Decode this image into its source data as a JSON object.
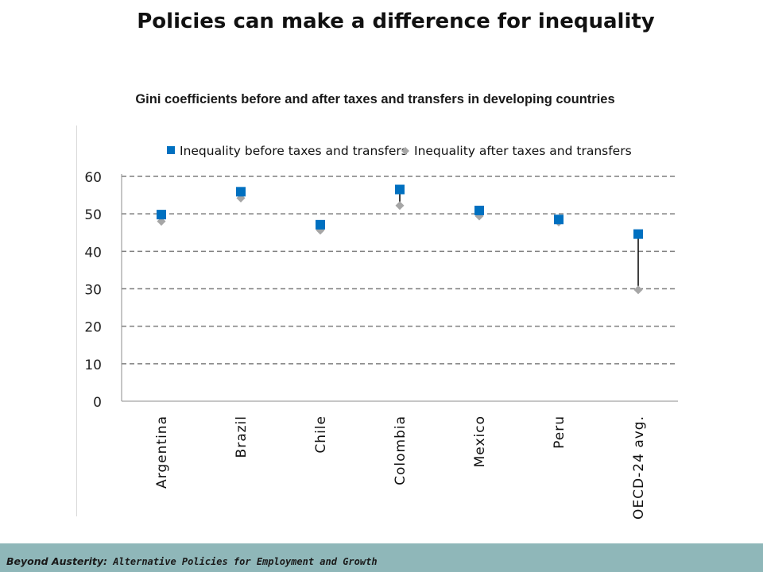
{
  "slide": {
    "title": "Policies can make a difference for inequality"
  },
  "footer": {
    "main": "Beyond Austerity:",
    "sub": " Alternative Policies for Employment and Growth"
  },
  "chart_data": {
    "type": "scatter",
    "title": "Gini coefficients before and after taxes and transfers in developing countries",
    "categories": [
      "Argentina",
      "Brazil",
      "Chile",
      "Colombia",
      "Mexico",
      "Peru",
      "OECD-24 avg."
    ],
    "series": [
      {
        "name": "Inequality before taxes and transfers",
        "marker": "square",
        "color": "#0070c0",
        "values": [
          49.8,
          55.9,
          47.1,
          56.5,
          50.9,
          48.5,
          44.6
        ]
      },
      {
        "name": "Inequality after taxes and transfers",
        "marker": "diamond",
        "color": "#a6a6a6",
        "values": [
          48.0,
          54.2,
          45.6,
          52.2,
          49.4,
          47.8,
          29.7
        ]
      }
    ],
    "ylim": [
      0,
      60
    ],
    "yticks": [
      0,
      10,
      20,
      30,
      40,
      50,
      60
    ],
    "grid": true,
    "legend_position": "top",
    "connector_color": "#000000"
  }
}
